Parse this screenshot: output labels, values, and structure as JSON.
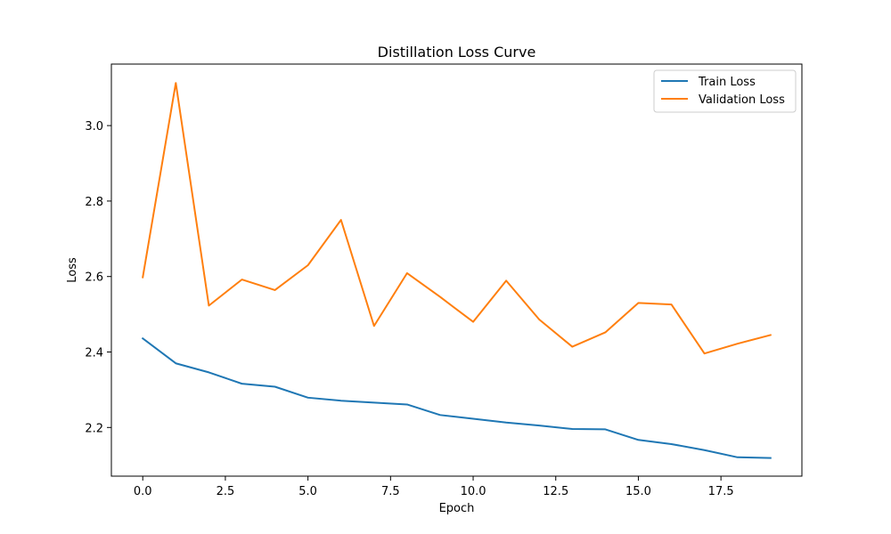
{
  "chart_data": {
    "type": "line",
    "title": "Distillation Loss Curve",
    "xlabel": "Epoch",
    "ylabel": "Loss",
    "xlim": [
      -0.95,
      19.95
    ],
    "ylim": [
      2.071,
      3.163
    ],
    "x_ticks": [
      0.0,
      2.5,
      5.0,
      7.5,
      10.0,
      12.5,
      15.0,
      17.5
    ],
    "x_tick_labels": [
      "0.0",
      "2.5",
      "5.0",
      "7.5",
      "10.0",
      "12.5",
      "15.0",
      "17.5"
    ],
    "y_ticks": [
      2.2,
      2.4,
      2.6,
      2.8,
      3.0
    ],
    "y_tick_labels": [
      "2.2",
      "2.4",
      "2.6",
      "2.8",
      "3.0"
    ],
    "grid": false,
    "legend_position": "top-right",
    "x": [
      0,
      1,
      2,
      3,
      4,
      5,
      6,
      7,
      8,
      9,
      10,
      11,
      12,
      13,
      14,
      15,
      16,
      17,
      18,
      19
    ],
    "series": [
      {
        "name": "Train Loss",
        "color": "#1f77b4",
        "values": [
          2.436,
          2.37,
          2.346,
          2.316,
          2.308,
          2.279,
          2.271,
          2.266,
          2.261,
          2.233,
          2.223,
          2.213,
          2.205,
          2.196,
          2.195,
          2.167,
          2.156,
          2.14,
          2.121,
          2.119
        ]
      },
      {
        "name": "Validation Loss",
        "color": "#ff7f0e",
        "values": [
          2.598,
          3.113,
          2.523,
          2.592,
          2.564,
          2.63,
          2.75,
          2.469,
          2.609,
          2.546,
          2.48,
          2.589,
          2.486,
          2.414,
          2.452,
          2.53,
          2.526,
          2.396,
          2.422,
          2.445
        ]
      }
    ]
  }
}
